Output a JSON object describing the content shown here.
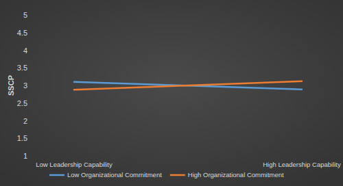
{
  "chart_data": {
    "type": "line",
    "ylabel": "SSCP",
    "categories": [
      "Low Leadership Capability",
      "High Leadership Capability"
    ],
    "series": [
      {
        "name": "Low Organizational Commitment",
        "color": "#5b9bd5",
        "values": [
          3.1,
          2.89
        ]
      },
      {
        "name": "High Organizational Commitment",
        "color": "#ed7d31",
        "values": [
          2.88,
          3.12
        ]
      }
    ],
    "ylim": [
      1,
      5
    ],
    "yticks": [
      1,
      1.5,
      2,
      2.5,
      3,
      3.5,
      4,
      4.5,
      5
    ],
    "grid": false,
    "legend": "bottom"
  }
}
